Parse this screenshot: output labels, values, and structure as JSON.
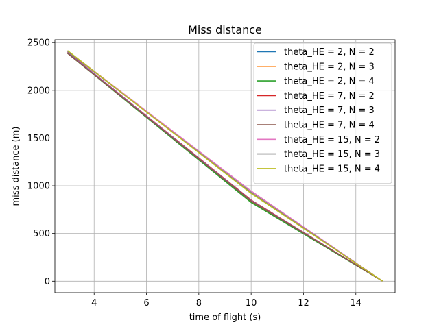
{
  "chart_data": {
    "type": "line",
    "title": "Miss distance",
    "xlabel": "time of flight (s)",
    "ylabel": "miss distance (m)",
    "xlim": [
      2.5,
      15.5
    ],
    "ylim": [
      -120,
      2530
    ],
    "xticks": [
      4,
      6,
      8,
      10,
      12,
      14
    ],
    "yticks": [
      0,
      500,
      1000,
      1500,
      2000,
      2500
    ],
    "xtick_labels": [
      "4",
      "6",
      "8",
      "10",
      "12",
      "14"
    ],
    "ytick_labels": [
      "0",
      "500",
      "1000",
      "1500",
      "2000",
      "2500"
    ],
    "grid": true,
    "legend_position": "top-right",
    "x": [
      3,
      10,
      15
    ],
    "series": [
      {
        "name": "theta_HE = 2, N = 2",
        "color": "#1f77b4",
        "values": [
          2390,
          840,
          5
        ]
      },
      {
        "name": "theta_HE = 2, N = 3",
        "color": "#ff7f0e",
        "values": [
          2390,
          835,
          5
        ]
      },
      {
        "name": "theta_HE = 2, N = 4",
        "color": "#2ca02c",
        "values": [
          2385,
          825,
          5
        ]
      },
      {
        "name": "theta_HE = 7, N = 2",
        "color": "#d62728",
        "values": [
          2395,
          850,
          5
        ]
      },
      {
        "name": "theta_HE = 7, N = 3",
        "color": "#9467bd",
        "values": [
          2392,
          845,
          5
        ]
      },
      {
        "name": "theta_HE = 7, N = 4",
        "color": "#8c564b",
        "values": [
          2385,
          840,
          5
        ]
      },
      {
        "name": "theta_HE = 15, N = 2",
        "color": "#e377c2",
        "values": [
          2410,
          945,
          5
        ]
      },
      {
        "name": "theta_HE = 15, N = 3",
        "color": "#7f7f7f",
        "values": [
          2405,
          930,
          5
        ]
      },
      {
        "name": "theta_HE = 15, N = 4",
        "color": "#bcbd22",
        "values": [
          2412,
          920,
          5
        ]
      }
    ]
  }
}
